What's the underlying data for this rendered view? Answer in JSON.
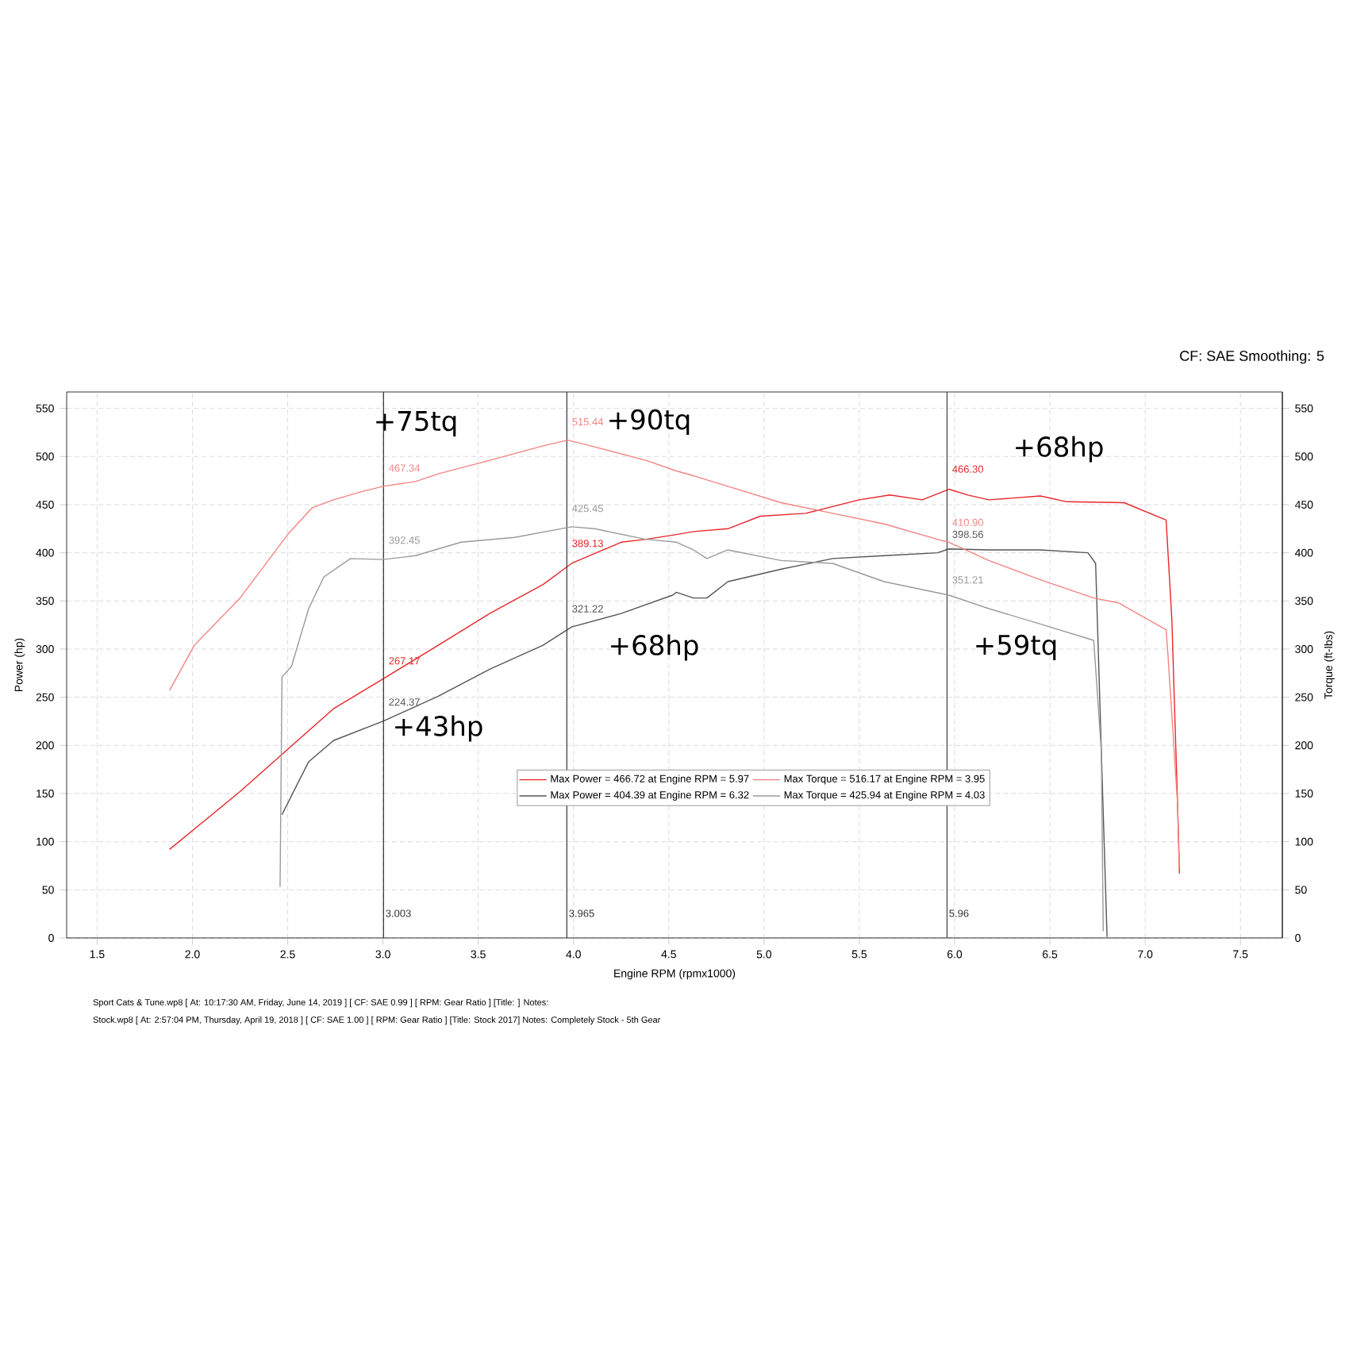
{
  "chart_data": {
    "type": "line",
    "xlabel": "Engine RPM (rpmx1000)",
    "ylabel": "Power (hp)",
    "y2label": "Torque (ft-lbs)",
    "xlim": [
      1.34,
      7.72
    ],
    "ylim": [
      0,
      567
    ],
    "y2lim": [
      0,
      567
    ],
    "xticks": [
      {
        "value": 1.5,
        "label": "1.5"
      },
      {
        "value": 2,
        "label": "2.0"
      },
      {
        "value": 2.5,
        "label": "2.5"
      },
      {
        "value": 3,
        "label": "3.0"
      },
      {
        "value": 3.5,
        "label": "3.5"
      },
      {
        "value": 4,
        "label": "4.0"
      },
      {
        "value": 4.5,
        "label": "4.5"
      },
      {
        "value": 5,
        "label": "5.0"
      },
      {
        "value": 5.5,
        "label": "5.5"
      },
      {
        "value": 6,
        "label": "6.0"
      },
      {
        "value": 6.5,
        "label": "6.5"
      },
      {
        "value": 7,
        "label": "7.0"
      },
      {
        "value": 7.5,
        "label": "7.5"
      }
    ],
    "yticks": [
      0,
      50,
      100,
      150,
      200,
      250,
      300,
      350,
      400,
      450,
      500,
      550
    ],
    "y2ticks": [
      0,
      50,
      100,
      150,
      200,
      250,
      300,
      350,
      400,
      450,
      500,
      550
    ],
    "grid": true,
    "legend": "center",
    "series": [
      {
        "name": "Max Power = 466.72 at Engine RPM = 5.97",
        "color": "#e8262a",
        "x": [
          1.88,
          2.25,
          2.5,
          2.74,
          3.0,
          3.29,
          3.56,
          3.84,
          3.99,
          4.25,
          4.38,
          4.54,
          4.63,
          4.81,
          4.98,
          5.22,
          5.5,
          5.66,
          5.83,
          5.97,
          6.07,
          6.18,
          6.45,
          6.59,
          6.89,
          7.11,
          7.14,
          7.17,
          7.18
        ],
        "values": [
          92,
          152,
          196,
          238,
          269,
          304,
          337,
          367,
          389,
          411,
          414,
          419,
          422,
          425,
          438,
          441,
          455,
          460,
          455,
          466,
          460,
          455,
          459,
          453,
          452,
          434,
          331,
          139,
          67
        ]
      },
      {
        "name": "Max Torque = 516.17 at Engine RPM = 3.95",
        "color": "#f28482",
        "axis": "y2",
        "x": [
          1.88,
          2.01,
          2.25,
          2.5,
          2.63,
          2.74,
          2.88,
          3.0,
          3.17,
          3.29,
          3.56,
          3.84,
          3.97,
          4.11,
          4.38,
          4.54,
          4.63,
          4.81,
          5.09,
          5.36,
          5.63,
          5.91,
          5.97,
          6.18,
          6.45,
          6.73,
          6.86,
          7.11,
          7.12,
          7.17,
          7.18
        ],
        "values": [
          257,
          304,
          353,
          419,
          447,
          455,
          463,
          469,
          474,
          482,
          496,
          511,
          517,
          510,
          496,
          485,
          480,
          469,
          452,
          441,
          430,
          414,
          411,
          392,
          372,
          353,
          348,
          320,
          293,
          139,
          73
        ]
      },
      {
        "name": "Max Power = 404.39 at Engine RPM = 6.32",
        "color": "#555555",
        "x": [
          2.47,
          2.61,
          2.74,
          3.0,
          3.29,
          3.56,
          3.84,
          3.99,
          4.25,
          4.52,
          4.54,
          4.63,
          4.7,
          4.81,
          5.09,
          5.36,
          5.63,
          5.91,
          5.97,
          6.18,
          6.45,
          6.7,
          6.74,
          6.77,
          6.8
        ],
        "values": [
          128,
          183,
          205,
          225,
          251,
          279,
          304,
          323,
          337,
          356,
          359,
          353,
          353,
          370,
          383,
          394,
          397,
          400,
          404,
          403,
          403,
          400,
          389,
          194,
          1
        ]
      },
      {
        "name": "Max Torque = 425.94 at Engine RPM = 4.03",
        "color": "#9a9a9a",
        "axis": "y2",
        "x": [
          2.46,
          2.47,
          2.52,
          2.61,
          2.69,
          2.83,
          3.0,
          3.17,
          3.41,
          3.69,
          3.99,
          4.11,
          4.38,
          4.54,
          4.63,
          4.7,
          4.81,
          5.09,
          5.36,
          5.63,
          5.97,
          6.18,
          6.45,
          6.73,
          6.77,
          6.78
        ],
        "values": [
          53,
          271,
          282,
          342,
          375,
          394,
          393,
          397,
          411,
          416,
          427,
          425,
          414,
          411,
          403,
          394,
          403,
          392,
          389,
          370,
          356,
          342,
          326,
          309,
          194,
          7
        ]
      }
    ],
    "ref_lines": [
      {
        "axis": "x",
        "value": 3.003,
        "label": "3.003",
        "color": "#333333"
      },
      {
        "axis": "x",
        "value": 3.965,
        "label": "3.965",
        "color": "#333333"
      },
      {
        "axis": "x",
        "value": 5.96,
        "label": "5.96",
        "color": "#333333"
      }
    ],
    "annotations": [
      "CF: SAE Smoothing: 5",
      "Sport Cats & Tune.wp8 [ At: 10:17:30 AM, Friday, June 14, 2019 ] [ CF: SAE 0.99 ] [ RPM: Gear Ratio ] [Title: ] Notes:",
      "Stock.wp8 [ At: 2:57:04 PM, Thursday, April 19, 2018 ] [ CF: SAE 1.00 ] [ RPM: Gear Ratio ] [Title: Stock 2017] Notes: Completely Stock - 5th Gear",
      {
        "text": "467.34",
        "x": 3.003,
        "y": 467.34
      },
      {
        "text": "392.45",
        "x": 3.003,
        "y": 392.45
      },
      {
        "text": "267.17",
        "x": 3.003,
        "y": 267.17
      },
      {
        "text": "224.37",
        "x": 3.003,
        "y": 224.37
      },
      {
        "text": "515.44",
        "x": 3.965,
        "y": 515.44
      },
      {
        "text": "425.45",
        "x": 3.965,
        "y": 425.45
      },
      {
        "text": "389.13",
        "x": 3.965,
        "y": 389.13
      },
      {
        "text": "321.22",
        "x": 3.965,
        "y": 321.22
      },
      {
        "text": "466.30",
        "x": 5.96,
        "y": 466.3
      },
      {
        "text": "410.90",
        "x": 5.96,
        "y": 410.9
      },
      {
        "text": "398.56",
        "x": 5.96,
        "y": 398.56
      },
      {
        "text": "351.21",
        "x": 5.96,
        "y": 351.21
      },
      "+75tq",
      "+90tq",
      "+68hp",
      "+68hp",
      "+43hp",
      "+59tq"
    ]
  }
}
